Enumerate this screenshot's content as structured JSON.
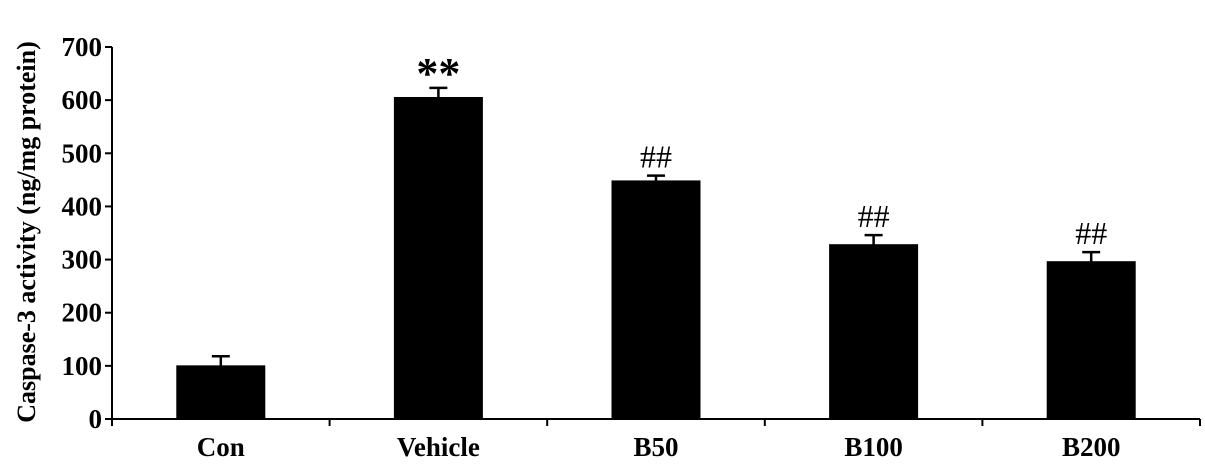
{
  "chart_data": {
    "type": "bar",
    "title": "",
    "xlabel": "",
    "ylabel": "Caspase-3 activity (ng/mg protein)",
    "ylim": [
      0,
      700
    ],
    "yticks": [
      "0",
      "100",
      "200",
      "300",
      "400",
      "500",
      "600",
      "700"
    ],
    "categories": [
      "Con",
      "Vehicle",
      "B50",
      "B100",
      "B200"
    ],
    "values": [
      100,
      605,
      448,
      328,
      296
    ],
    "errors": [
      18,
      18,
      10,
      18,
      18
    ],
    "annotations": [
      "",
      "**",
      "##",
      "##",
      "##"
    ],
    "bar_color": "#000000",
    "grid": false,
    "legend": "none"
  }
}
